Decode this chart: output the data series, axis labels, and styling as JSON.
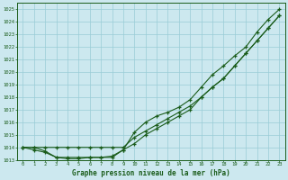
{
  "title": "Graphe pression niveau de la mer (hPa)",
  "xlabel_values": [
    0,
    1,
    2,
    3,
    4,
    5,
    6,
    7,
    8,
    9,
    10,
    11,
    12,
    13,
    14,
    15,
    16,
    17,
    18,
    19,
    20,
    21,
    22,
    23
  ],
  "ylim": [
    1013.0,
    1025.5
  ],
  "xlim": [
    -0.5,
    23.5
  ],
  "yticks": [
    1013,
    1014,
    1015,
    1016,
    1017,
    1018,
    1019,
    1020,
    1021,
    1022,
    1023,
    1024,
    1025
  ],
  "background_color": "#cce8ef",
  "grid_color": "#99ccd6",
  "line_color": "#1a5c1a",
  "line1": [
    1014.0,
    1014.0,
    1014.0,
    1014.0,
    1014.0,
    1014.0,
    1014.0,
    1014.0,
    1014.0,
    1014.0,
    1014.8,
    1015.3,
    1015.8,
    1016.3,
    1016.8,
    1017.3,
    1018.0,
    1018.8,
    1019.5,
    1020.5,
    1021.5,
    1022.5,
    1023.5,
    1024.5
  ],
  "line2": [
    1014.0,
    1014.0,
    1013.7,
    1013.2,
    1013.2,
    1013.2,
    1013.2,
    1013.2,
    1013.2,
    1013.8,
    1014.3,
    1015.0,
    1015.5,
    1016.0,
    1016.5,
    1017.0,
    1018.0,
    1018.8,
    1019.5,
    1020.5,
    1021.5,
    1022.5,
    1023.5,
    1024.5
  ],
  "line3": [
    1014.0,
    1013.8,
    1013.6,
    1013.2,
    1013.1,
    1013.1,
    1013.2,
    1013.2,
    1013.3,
    1013.8,
    1015.2,
    1016.0,
    1016.5,
    1016.8,
    1017.2,
    1017.8,
    1018.8,
    1019.8,
    1020.5,
    1021.3,
    1022.0,
    1023.2,
    1024.2,
    1025.0
  ]
}
